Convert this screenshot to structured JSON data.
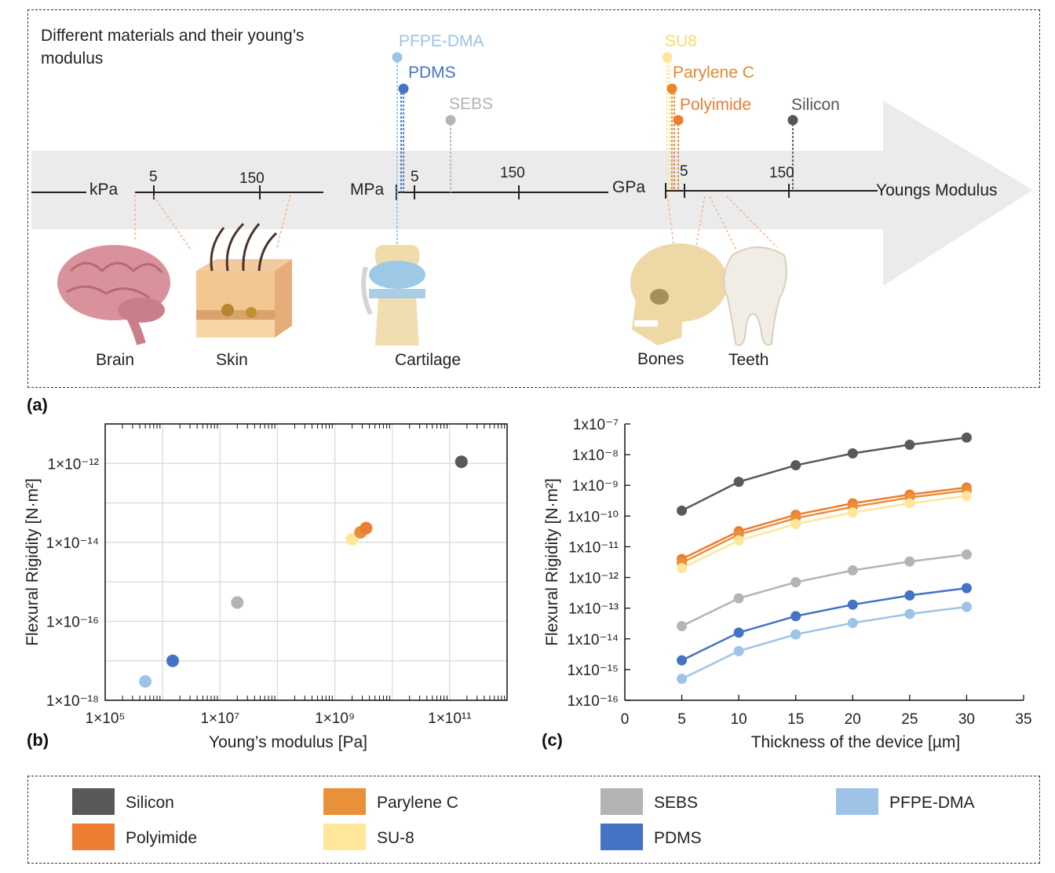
{
  "panel_a": {
    "tag": "(a)",
    "title_line1": "Different materials and their young’s",
    "title_line2": "modulus",
    "axis_label": "Youngs Modulus",
    "unit_labels": [
      "kPa",
      "MPa",
      "GPa"
    ],
    "tick_labels": [
      "5",
      "150",
      "5",
      "150",
      "5",
      "150"
    ],
    "materials": [
      {
        "name": "PFPE-DMA",
        "color": "#9dc3e6"
      },
      {
        "name": "PDMS",
        "color": "#4472c4"
      },
      {
        "name": "SEBS",
        "color": "#b4b4b4"
      },
      {
        "name": "SU8",
        "color": "#ffe699"
      },
      {
        "name": "Parylene C",
        "color": "#e8862a"
      },
      {
        "name": "Polyimide",
        "color": "#ed7d31"
      },
      {
        "name": "Silicon",
        "color": "#555555"
      }
    ],
    "tissues": [
      "Brain",
      "Skin",
      "Cartilage",
      "Bones",
      "Teeth"
    ]
  },
  "panel_b": {
    "tag": "(b)"
  },
  "panel_c": {
    "tag": "(c)"
  },
  "legend": [
    {
      "name": "Silicon",
      "color": "#595959"
    },
    {
      "name": "Parylene C",
      "color": "#e8903a"
    },
    {
      "name": "SEBS",
      "color": "#b4b4b4"
    },
    {
      "name": "PFPE-DMA",
      "color": "#9dc3e6"
    },
    {
      "name": "Polyimide",
      "color": "#ed7d31"
    },
    {
      "name": "SU-8",
      "color": "#ffe699"
    },
    {
      "name": "PDMS",
      "color": "#4472c4"
    }
  ],
  "chart_data": [
    {
      "type": "scatter",
      "xlabel": "Young’s modulus [Pa]",
      "ylabel": "Flexural Rigidity [N·m²]",
      "x_scale": "log",
      "y_scale": "log",
      "xlim": [
        100000,
        1000000000000
      ],
      "ylim": [
        1e-18,
        1e-11
      ],
      "x_tick_labels": [
        "1×10⁵",
        "1×10⁷",
        "1×10⁹",
        "1×10¹¹"
      ],
      "y_tick_labels": [
        "1×10⁻¹²",
        "1×10⁻¹⁴",
        "1×10⁻¹⁶",
        "1×10⁻¹⁸"
      ],
      "grid": true,
      "points": [
        {
          "name": "PFPE-DMA",
          "x": 500000,
          "y": 3e-18,
          "color": "#9dc3e6"
        },
        {
          "name": "PDMS",
          "x": 1500000,
          "y": 1e-17,
          "color": "#4472c4"
        },
        {
          "name": "SEBS",
          "x": 20000000,
          "y": 3e-16,
          "color": "#b4b4b4"
        },
        {
          "name": "SU-8",
          "x": 2000000000,
          "y": 1.2e-14,
          "color": "#ffe699"
        },
        {
          "name": "Parylene C",
          "x": 2800000000,
          "y": 1.8e-14,
          "color": "#e8903a"
        },
        {
          "name": "Polyimide",
          "x": 3500000000,
          "y": 2.3e-14,
          "color": "#ed7d31"
        },
        {
          "name": "Silicon",
          "x": 160000000000,
          "y": 1.1e-12,
          "color": "#595959"
        }
      ]
    },
    {
      "type": "line",
      "xlabel": "Thickness of the device [µm]",
      "ylabel": "Flexural Rigidity [N·m²]",
      "y_scale": "log",
      "xlim": [
        0,
        35
      ],
      "ylim": [
        1e-16,
        1e-07
      ],
      "x_ticks": [
        0,
        5,
        10,
        15,
        20,
        25,
        30,
        35
      ],
      "y_tick_labels": [
        "1x10⁻⁷",
        "1x10⁻⁸",
        "1x10⁻⁹",
        "1x10⁻¹⁰",
        "1x10⁻¹¹",
        "1x10⁻¹²",
        "1x10⁻¹³",
        "1x10⁻¹⁴",
        "1x10⁻¹⁵",
        "1x10⁻¹⁶"
      ],
      "grid": false,
      "x": [
        5,
        10,
        15,
        20,
        25,
        30
      ],
      "series": [
        {
          "name": "Silicon",
          "color": "#595959",
          "values": [
            1.5e-10,
            1.3e-09,
            4.5e-09,
            1.1e-08,
            2.1e-08,
            3.6e-08
          ]
        },
        {
          "name": "Polyimide",
          "color": "#ed7d31",
          "values": [
            4e-12,
            3.2e-11,
            1.1e-10,
            2.6e-10,
            5e-10,
            8.5e-10
          ]
        },
        {
          "name": "Parylene C",
          "color": "#e8903a",
          "values": [
            3e-12,
            2.5e-11,
            8.5e-11,
            2e-10,
            4e-10,
            6.8e-10
          ]
        },
        {
          "name": "SU-8",
          "color": "#ffe699",
          "values": [
            2e-12,
            1.6e-11,
            5.5e-11,
            1.3e-10,
            2.6e-10,
            4.5e-10
          ]
        },
        {
          "name": "SEBS",
          "color": "#b4b4b4",
          "values": [
            2.6e-14,
            2.1e-13,
            7e-13,
            1.7e-12,
            3.3e-12,
            5.6e-12
          ]
        },
        {
          "name": "PDMS",
          "color": "#4472c4",
          "values": [
            2e-15,
            1.6e-14,
            5.5e-14,
            1.3e-13,
            2.6e-13,
            4.5e-13
          ]
        },
        {
          "name": "PFPE-DMA",
          "color": "#9dc3e6",
          "values": [
            5e-16,
            4e-15,
            1.4e-14,
            3.3e-14,
            6.5e-14,
            1.1e-13
          ]
        }
      ]
    }
  ]
}
